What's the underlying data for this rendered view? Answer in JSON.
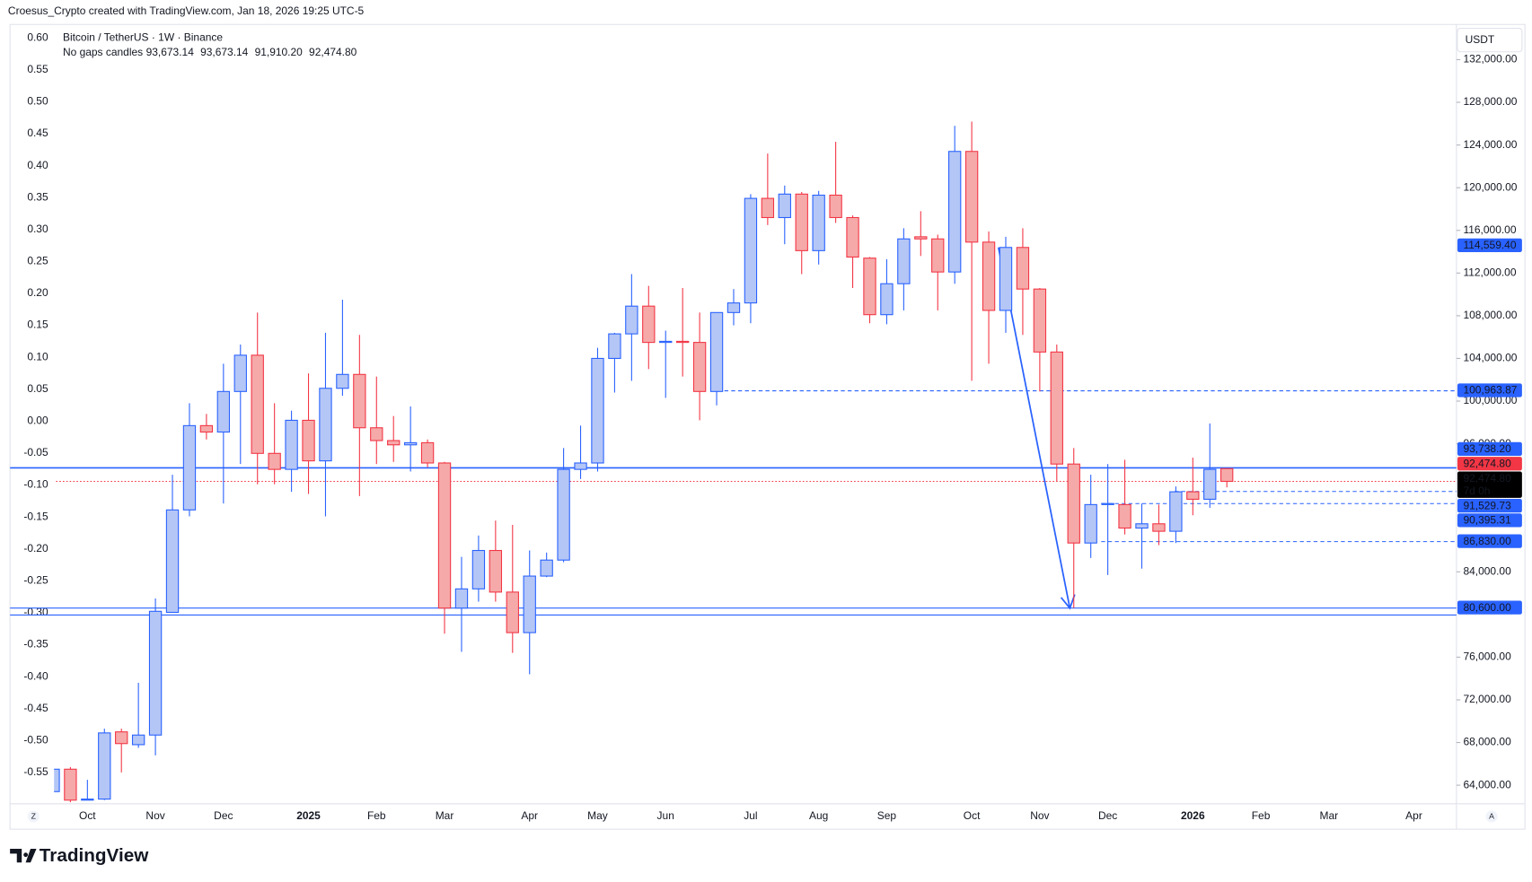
{
  "header": {
    "credit": "Croesus_Crypto created with TradingView.com, Jan 18, 2026 19:25 UTC-5"
  },
  "footer": {
    "brand": "TradingView"
  },
  "chart_data": {
    "type": "candlestick",
    "title": "Bitcoin / TetherUS · 1W · Binance",
    "subtitle": "No gaps candles",
    "ohlc_labels": [
      "93,673.14",
      "93,673.14",
      "91,910.20",
      "92,474.80"
    ],
    "currency": "USDT",
    "open": [
      63400,
      65500,
      62600,
      62700,
      69000,
      67800,
      68700,
      80200,
      89800,
      97700,
      97100,
      100900,
      104300,
      95100,
      93600,
      98200,
      94400,
      101200,
      102500,
      97500,
      96300,
      95900,
      96100,
      94200,
      80600,
      82400,
      86000,
      82100,
      78300,
      83600,
      85100,
      93600,
      94200,
      104000,
      106300,
      108900,
      105500,
      105600,
      105500,
      100900,
      108300,
      109200,
      119000,
      117200,
      119400,
      114100,
      119300,
      117200,
      113400,
      108100,
      111000,
      115400,
      115200,
      112100,
      123400,
      114900,
      108500,
      114400,
      110500,
      104600,
      94100,
      86700,
      90300,
      90300,
      88100,
      88500,
      87800,
      91500,
      90800,
      93673.14
    ],
    "high": [
      65700,
      65700,
      64500,
      69300,
      69300,
      73600,
      81500,
      93100,
      99800,
      98800,
      103500,
      105300,
      108300,
      99800,
      99100,
      102600,
      106400,
      109500,
      106200,
      102300,
      98600,
      99500,
      96400,
      94300,
      85400,
      87400,
      88800,
      88400,
      86000,
      85800,
      95600,
      97700,
      105000,
      106400,
      111900,
      110800,
      106600,
      110600,
      108300,
      108300,
      110500,
      119400,
      123200,
      120200,
      119600,
      119700,
      124300,
      117400,
      113500,
      113300,
      116200,
      117800,
      115600,
      125800,
      126200,
      115900,
      115400,
      116200,
      110600,
      105300,
      95600,
      93100,
      94100,
      94500,
      90400,
      90300,
      92000,
      94700,
      97900,
      93673.14
    ],
    "low": [
      63400,
      62400,
      62600,
      62600,
      65200,
      67500,
      66800,
      80200,
      89200,
      96400,
      90400,
      94100,
      92200,
      92200,
      91500,
      91300,
      89200,
      100500,
      91100,
      94100,
      94300,
      93400,
      93800,
      78200,
      76500,
      81200,
      81200,
      76400,
      74400,
      83500,
      84900,
      92700,
      93400,
      100800,
      101900,
      103000,
      100300,
      102300,
      98200,
      99600,
      107100,
      107300,
      116500,
      114700,
      111900,
      112800,
      116700,
      110600,
      107300,
      107200,
      108500,
      113600,
      108500,
      111000,
      101900,
      103500,
      106400,
      106200,
      100900,
      92500,
      80600,
      85300,
      83700,
      87500,
      84300,
      86500,
      86700,
      89300,
      90000,
      91910.2
    ],
    "close": [
      65500,
      62600,
      62700,
      68900,
      67900,
      68700,
      80300,
      89800,
      97700,
      97100,
      100900,
      104300,
      95100,
      93600,
      98200,
      94400,
      101200,
      102500,
      97500,
      96300,
      95900,
      96100,
      94200,
      80600,
      82400,
      86000,
      82100,
      78300,
      83600,
      85100,
      93600,
      94200,
      104000,
      106300,
      108900,
      105500,
      105600,
      105500,
      100900,
      108300,
      109200,
      119000,
      117200,
      119400,
      114100,
      119300,
      117200,
      113500,
      108100,
      111000,
      115200,
      115200,
      112100,
      123400,
      114900,
      108500,
      114400,
      110500,
      104600,
      94100,
      86700,
      90300,
      90400,
      88100,
      88500,
      87800,
      91500,
      90800,
      93600,
      92474.8
    ],
    "up_color": "#2962ff",
    "up_fill": "#b4c6f6",
    "down_color": "#f23645",
    "down_fill": "#f6a9a9",
    "xlim": [
      -0.25,
      82.5
    ],
    "xticks": [
      {
        "value": 2,
        "label": "Oct"
      },
      {
        "value": 6,
        "label": "Nov"
      },
      {
        "value": 10,
        "label": "Dec"
      },
      {
        "value": 15,
        "label": "2025"
      },
      {
        "value": 19,
        "label": "Feb"
      },
      {
        "value": 23,
        "label": "Mar"
      },
      {
        "value": 28,
        "label": "Apr"
      },
      {
        "value": 32,
        "label": "May"
      },
      {
        "value": 36,
        "label": "Jun"
      },
      {
        "value": 41,
        "label": "Jul"
      },
      {
        "value": 45,
        "label": "Aug"
      },
      {
        "value": 49,
        "label": "Sep"
      },
      {
        "value": 54,
        "label": "Oct"
      },
      {
        "value": 58,
        "label": "Nov"
      },
      {
        "value": 62,
        "label": "Dec"
      },
      {
        "value": 67,
        "label": "2026"
      },
      {
        "value": 71,
        "label": "Feb"
      },
      {
        "value": 75,
        "label": "Mar"
      },
      {
        "value": 80,
        "label": "Apr"
      }
    ],
    "ylim": [
      62260,
      135300
    ],
    "yticks": [
      {
        "value": 132000,
        "label": "132,000.00"
      },
      {
        "value": 128000,
        "label": "128,000.00"
      },
      {
        "value": 124000,
        "label": "124,000.00"
      },
      {
        "value": 120000,
        "label": "120,000.00"
      },
      {
        "value": 116000,
        "label": "116,000.00"
      },
      {
        "value": 112000,
        "label": "112,000.00"
      },
      {
        "value": 108000,
        "label": "108,000.00"
      },
      {
        "value": 104000,
        "label": "104,000.00"
      },
      {
        "value": 100000,
        "label": "100,000.00"
      },
      {
        "value": 96000,
        "label": "96,000.00"
      },
      {
        "value": 84000,
        "label": "84,000.00"
      },
      {
        "value": 76000,
        "label": "76,000.00"
      },
      {
        "value": 72000,
        "label": "72,000.00"
      },
      {
        "value": 68000,
        "label": "68,000.00"
      },
      {
        "value": 64000,
        "label": "64,000.00"
      }
    ],
    "y2lim": [
      -0.599,
      0.621
    ],
    "y2ticks": [
      {
        "value": 0.6,
        "label": "0.60"
      },
      0.55,
      {
        "value": 0.5,
        "label": "0.50"
      },
      0.45,
      {
        "value": 0.4,
        "label": "0.40"
      },
      0.35,
      {
        "value": 0.3,
        "label": "0.30"
      },
      0.25,
      {
        "value": 0.2,
        "label": "0.20"
      },
      0.15,
      {
        "value": 0.1,
        "label": "0.10"
      },
      0.05,
      {
        "value": 0,
        "label": "0.00"
      },
      -0.05,
      {
        "value": -0.1,
        "label": "-0.10"
      },
      -0.15,
      {
        "value": -0.2,
        "label": "-0.20"
      },
      -0.25,
      {
        "value": -0.3,
        "label": "-0.30"
      },
      -0.35,
      {
        "value": -0.4,
        "label": "-0.40"
      },
      -0.45,
      {
        "value": -0.5,
        "label": "-0.50"
      },
      -0.55
    ],
    "levels": [
      {
        "value": 93738.2,
        "style": "solid",
        "color": "#2962ff"
      },
      {
        "value": 80600,
        "style": "solid",
        "color": "#2962ff"
      },
      {
        "value": 79950,
        "style": "solid",
        "color": "#2962ff"
      },
      {
        "value": 100963.87,
        "style": "dashed",
        "color": "#2962ff"
      },
      {
        "value": 91529.73,
        "style": "dashed",
        "color": "#2962ff"
      },
      {
        "value": 90395.31,
        "style": "dashed",
        "color": "#2962ff"
      },
      {
        "value": 86830,
        "style": "dashed",
        "color": "#2962ff"
      },
      {
        "value": 92474.8,
        "style": "dotted",
        "color": "#f23645"
      }
    ],
    "price_labels": [
      {
        "value": 114559.4,
        "label": "114,559.40",
        "color": "#2962ff"
      },
      {
        "value": 100963.87,
        "label": "100,963.87",
        "color": "#2962ff"
      },
      {
        "value": 93738.2,
        "label": "93,738.20",
        "color": "#2962ff"
      },
      {
        "value": 92474.8,
        "label": "92,474.80",
        "color": "#f23645"
      },
      {
        "value": 92474.8,
        "label": "92,474.80",
        "sublabel": "7d 0h",
        "color": "#000000"
      },
      {
        "value": 91529.73,
        "label": "91,529.73",
        "color": "#2962ff"
      },
      {
        "value": 90395.31,
        "label": "90,395.31",
        "color": "#2962ff"
      },
      {
        "value": 86830,
        "label": "86,830.00",
        "color": "#2962ff"
      },
      {
        "value": 80600,
        "label": "80,600.00",
        "color": "#2962ff"
      }
    ],
    "scale_buttons": [
      "Z",
      "A"
    ]
  }
}
